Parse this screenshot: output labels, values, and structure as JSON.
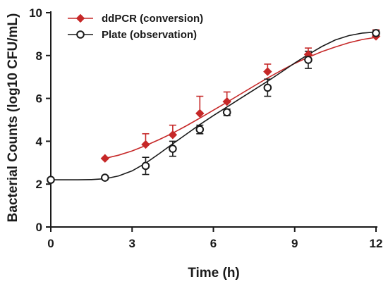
{
  "chart_data": {
    "type": "line",
    "xlabel": "Time (h)",
    "ylabel": "Bacterial Counts (log10 CFU/mL)",
    "xlim": [
      0,
      12
    ],
    "ylim": [
      0,
      10
    ],
    "xticks": [
      0,
      3,
      6,
      9,
      12
    ],
    "yticks": [
      0,
      2,
      4,
      6,
      8,
      10
    ],
    "grid": false,
    "legend_position": "top-left",
    "series": [
      {
        "name": "ddPCR (conversion)",
        "color": "#c62828",
        "marker": "diamond",
        "x": [
          2,
          3.5,
          4.5,
          5.5,
          6.5,
          8,
          9.5,
          12
        ],
        "y": [
          3.2,
          3.85,
          4.3,
          5.3,
          5.85,
          7.25,
          8.05,
          8.9
        ],
        "error": [
          0,
          0.5,
          0.45,
          0.8,
          0.45,
          0.35,
          0.3,
          0.3
        ],
        "fit": [
          [
            2,
            3.2
          ],
          [
            2.5,
            3.35
          ],
          [
            3,
            3.55
          ],
          [
            3.5,
            3.8
          ],
          [
            4,
            4.08
          ],
          [
            4.5,
            4.38
          ],
          [
            5,
            4.72
          ],
          [
            5.5,
            5.08
          ],
          [
            6,
            5.45
          ],
          [
            6.5,
            5.82
          ],
          [
            7,
            6.2
          ],
          [
            7.5,
            6.58
          ],
          [
            8,
            6.95
          ],
          [
            8.5,
            7.3
          ],
          [
            9,
            7.63
          ],
          [
            9.5,
            7.92
          ],
          [
            10,
            8.18
          ],
          [
            10.5,
            8.4
          ],
          [
            11,
            8.6
          ],
          [
            11.5,
            8.75
          ],
          [
            12,
            8.85
          ]
        ]
      },
      {
        "name": "Plate (observation)",
        "color": "#1a1a1a",
        "marker": "circle",
        "x": [
          0,
          2,
          3.5,
          4.5,
          5.5,
          6.5,
          8,
          9.5,
          12
        ],
        "y": [
          2.2,
          2.3,
          2.85,
          3.65,
          4.55,
          5.35,
          6.5,
          7.8,
          9.05
        ],
        "error": [
          0,
          0,
          0.4,
          0.35,
          0.2,
          0.15,
          0.4,
          0.4,
          0.1
        ],
        "fit": [
          [
            0,
            2.2
          ],
          [
            0.5,
            2.2
          ],
          [
            1,
            2.2
          ],
          [
            1.5,
            2.21
          ],
          [
            2,
            2.25
          ],
          [
            2.5,
            2.38
          ],
          [
            3,
            2.62
          ],
          [
            3.5,
            2.98
          ],
          [
            4,
            3.42
          ],
          [
            4.5,
            3.88
          ],
          [
            5,
            4.33
          ],
          [
            5.5,
            4.78
          ],
          [
            6,
            5.2
          ],
          [
            6.5,
            5.6
          ],
          [
            7,
            6.0
          ],
          [
            7.5,
            6.4
          ],
          [
            8,
            6.8
          ],
          [
            8.5,
            7.22
          ],
          [
            9,
            7.65
          ],
          [
            9.5,
            8.05
          ],
          [
            10,
            8.42
          ],
          [
            10.5,
            8.73
          ],
          [
            11,
            8.93
          ],
          [
            11.5,
            9.05
          ],
          [
            12,
            9.1
          ]
        ]
      }
    ]
  }
}
